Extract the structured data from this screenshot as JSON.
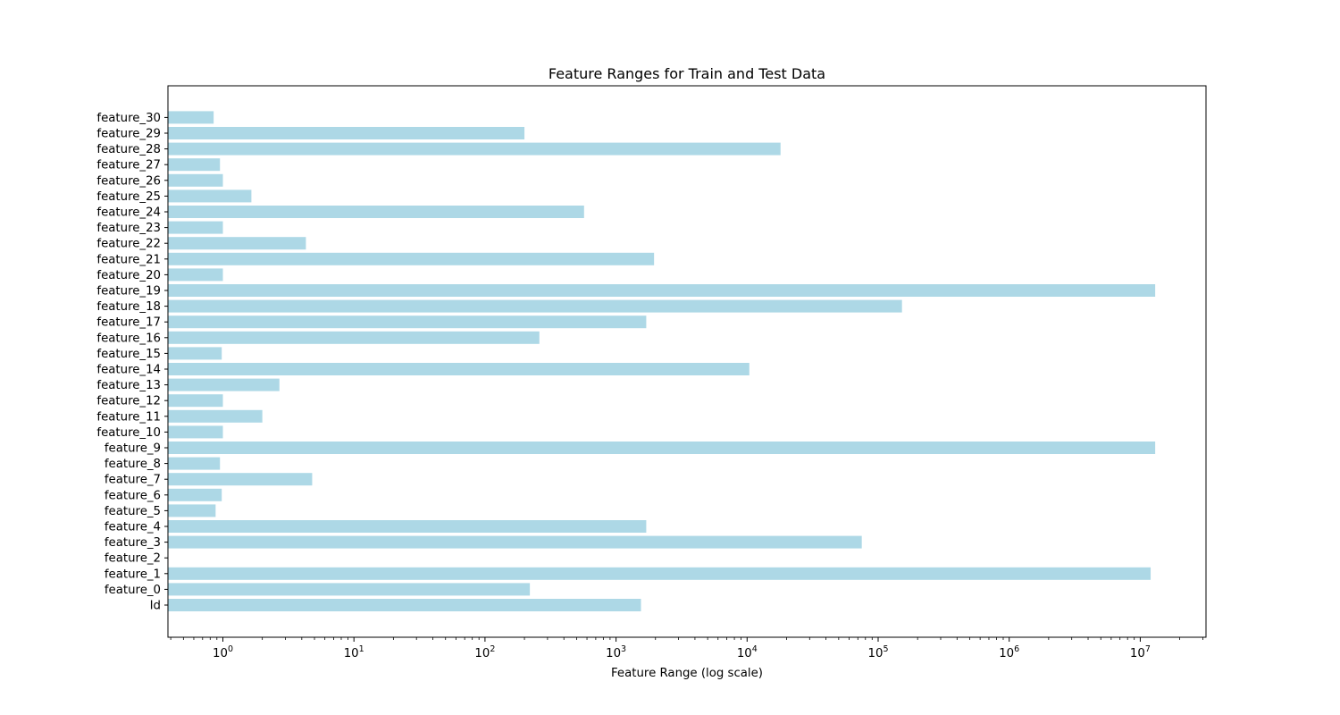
{
  "chart_data": {
    "type": "bar",
    "orientation": "horizontal",
    "title": "Feature Ranges for Train and Test Data",
    "xlabel": "Feature Range (log scale)",
    "ylabel": "",
    "xscale": "log",
    "xlim": [
      0.4,
      30000000
    ],
    "grid": false,
    "bar_color": "#add8e6",
    "x_ticks": [
      {
        "value": 1,
        "base": "10",
        "exp": "0"
      },
      {
        "value": 10,
        "base": "10",
        "exp": "1"
      },
      {
        "value": 100,
        "base": "10",
        "exp": "2"
      },
      {
        "value": 1000,
        "base": "10",
        "exp": "3"
      },
      {
        "value": 10000,
        "base": "10",
        "exp": "4"
      },
      {
        "value": 100000,
        "base": "10",
        "exp": "5"
      },
      {
        "value": 1000000,
        "base": "10",
        "exp": "6"
      },
      {
        "value": 10000000,
        "base": "10",
        "exp": "7"
      }
    ],
    "categories": [
      "Id",
      "feature_0",
      "feature_1",
      "feature_2",
      "feature_3",
      "feature_4",
      "feature_5",
      "feature_6",
      "feature_7",
      "feature_8",
      "feature_9",
      "feature_10",
      "feature_11",
      "feature_12",
      "feature_13",
      "feature_14",
      "feature_15",
      "feature_16",
      "feature_17",
      "feature_18",
      "feature_19",
      "feature_20",
      "feature_21",
      "feature_22",
      "feature_23",
      "feature_24",
      "feature_25",
      "feature_26",
      "feature_27",
      "feature_28",
      "feature_29",
      "feature_30"
    ],
    "values": [
      1550,
      220,
      12000000,
      0,
      75000,
      1700,
      0.88,
      0.98,
      4.8,
      0.95,
      13000000,
      1.0,
      2.0,
      1.0,
      2.7,
      10400,
      0.98,
      260,
      1700,
      152000,
      13000000,
      1.0,
      1950,
      4.3,
      1.0,
      570,
      1.65,
      1.0,
      0.95,
      18000,
      200,
      0.85
    ]
  }
}
